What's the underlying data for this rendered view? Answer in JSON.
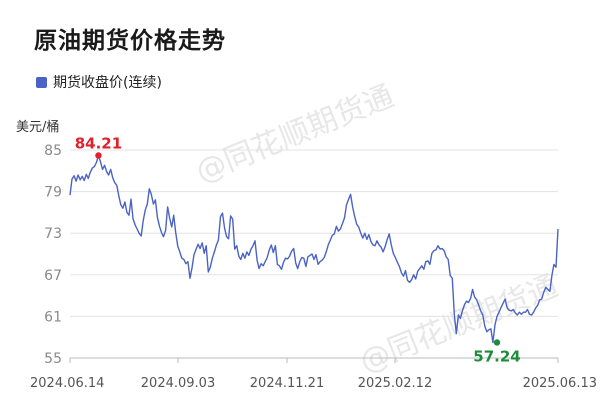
{
  "title": "原油期货价格走势",
  "unit_label": "美元/桶",
  "watermark": "@同花顺期货通",
  "colors": {
    "line": "#4a63c4",
    "high": "#e0202a",
    "low": "#1e8c3a",
    "grid": "#e3e3e3"
  },
  "chart_data": {
    "type": "line",
    "title": "原油期货价格走势",
    "xlabel": "",
    "ylabel": "美元/桶",
    "ylim": [
      55,
      85
    ],
    "yticks": [
      85,
      79,
      73,
      67,
      61,
      55
    ],
    "x_tick_labels": [
      "2024.06.14",
      "2024.09.03",
      "2024.11.21",
      "2025.02.12",
      "2025.06.13"
    ],
    "legend_position": "top-left",
    "grid": true,
    "series": [
      {
        "name": "期货收盘价(连续)",
        "values": [
          78.5,
          80.8,
          81.3,
          80.5,
          81.4,
          80.7,
          81.2,
          80.6,
          81.5,
          80.9,
          81.8,
          82.4,
          82.6,
          83.2,
          84.21,
          83.3,
          82.2,
          82.8,
          81.9,
          81.4,
          82.2,
          81.0,
          80.3,
          79.9,
          78.4,
          77.1,
          76.6,
          77.5,
          76.0,
          75.6,
          77.9,
          75.1,
          74.2,
          73.6,
          73.0,
          72.6,
          74.8,
          76.3,
          77.2,
          79.4,
          78.6,
          77.2,
          77.8,
          75.3,
          74.0,
          73.1,
          72.5,
          73.4,
          76.8,
          75.2,
          73.9,
          75.6,
          73.1,
          71.1,
          70.3,
          69.4,
          69.2,
          68.6,
          68.9,
          66.5,
          68.0,
          69.9,
          70.7,
          71.4,
          70.8,
          71.6,
          70.1,
          71.2,
          67.4,
          68.1,
          69.4,
          70.3,
          71.3,
          72.0,
          75.4,
          75.9,
          73.8,
          72.5,
          72.2,
          75.5,
          75.0,
          70.7,
          71.2,
          69.7,
          69.2,
          70.1,
          69.4,
          70.3,
          69.8,
          70.7,
          71.2,
          71.9,
          69.1,
          67.9,
          68.6,
          68.3,
          68.9,
          69.5,
          70.6,
          71.3,
          70.2,
          71.2,
          68.5,
          68.3,
          67.8,
          68.8,
          69.4,
          69.3,
          69.7,
          70.4,
          70.8,
          68.7,
          67.9,
          68.9,
          69.5,
          69.4,
          68.2,
          69.6,
          69.8,
          70.0,
          69.2,
          69.9,
          68.5,
          68.9,
          69.1,
          69.5,
          70.3,
          71.3,
          72.0,
          72.7,
          72.9,
          74.0,
          73.3,
          73.6,
          74.4,
          75.2,
          77.1,
          77.9,
          78.6,
          76.8,
          75.4,
          74.3,
          73.9,
          73.0,
          72.3,
          73.0,
          72.1,
          72.8,
          71.8,
          71.3,
          71.2,
          71.9,
          71.3,
          71.0,
          70.3,
          71.1,
          72.1,
          72.9,
          71.3,
          70.1,
          69.5,
          68.8,
          68.2,
          67.3,
          66.8,
          67.6,
          66.2,
          65.9,
          66.3,
          67.0,
          66.4,
          67.5,
          67.9,
          68.3,
          67.8,
          68.9,
          69.0,
          68.5,
          70.1,
          70.5,
          70.6,
          71.2,
          70.7,
          70.8,
          70.5,
          69.6,
          69.2,
          66.9,
          66.5,
          61.3,
          58.5,
          61.2,
          60.7,
          61.8,
          62.7,
          63.2,
          63.0,
          63.6,
          64.9,
          63.8,
          63.4,
          62.6,
          61.8,
          61.2,
          59.6,
          58.8,
          59.1,
          59.2,
          57.24,
          59.8,
          61.0,
          61.6,
          62.3,
          62.9,
          63.5,
          62.2,
          61.9,
          61.8,
          62.0,
          61.5,
          61.2,
          61.6,
          61.3,
          61.6,
          61.6,
          62.0,
          61.3,
          61.2,
          61.6,
          62.2,
          62.6,
          63.4,
          63.5,
          64.5,
          65.2,
          64.9,
          64.6,
          66.9,
          68.5,
          68.1,
          73.6
        ]
      }
    ],
    "annotations": [
      {
        "label": "84.21",
        "index": 14,
        "value": 84.21,
        "kind": "high"
      },
      {
        "label": "57.24",
        "index": 210,
        "value": 57.24,
        "kind": "low"
      }
    ]
  }
}
